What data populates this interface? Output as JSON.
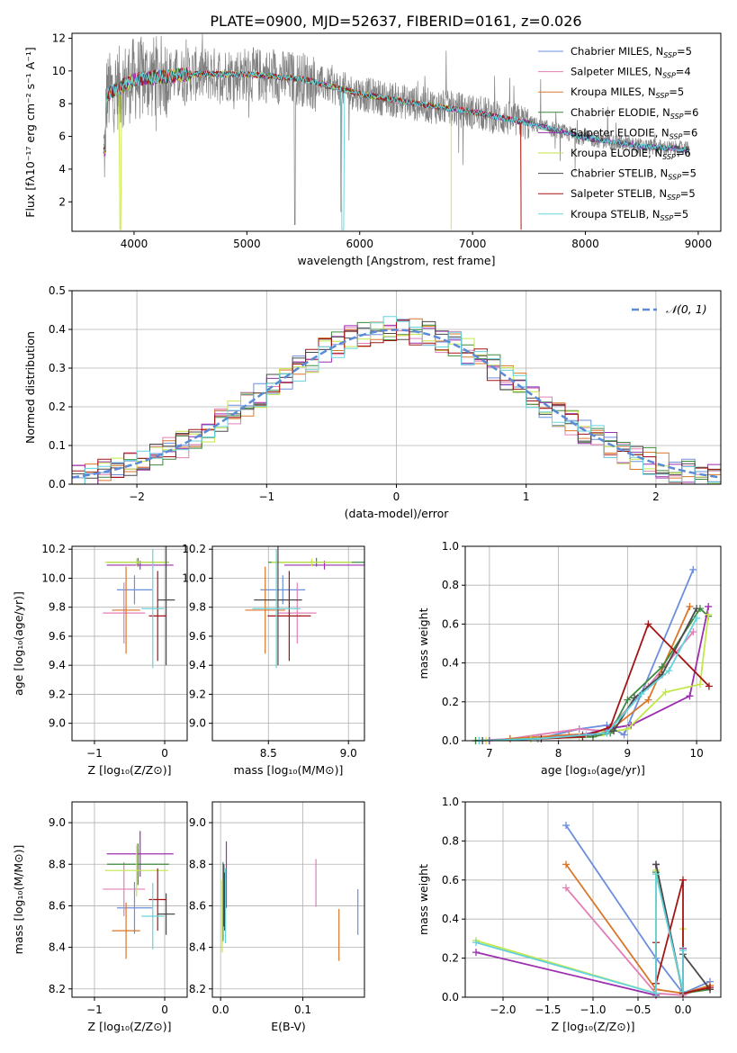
{
  "figure": {
    "title": "PLATE=0900, MJD=52637, FIBERID=0161, z=0.026"
  },
  "colors": [
    "#6a8fdc",
    "#e27fb6",
    "#d9772a",
    "#3d8a3d",
    "#9b2fae",
    "#c5e64a",
    "#4a4a4a",
    "#a31515",
    "#63d3dc"
  ],
  "chart_data": [
    {
      "id": "spectrum",
      "type": "line",
      "xlabel": "wavelength [Angstrom, rest frame]",
      "ylabel": "Flux [fλ10⁻¹⁷ erg cm⁻² s⁻¹ A⁻¹]",
      "xlim": [
        3450,
        9200
      ],
      "ylim": [
        0.2,
        12.3
      ],
      "xticks": [
        "4000",
        "5000",
        "6000",
        "7000",
        "8000",
        "9000"
      ],
      "yticks": [
        "2",
        "4",
        "6",
        "8",
        "10",
        "12"
      ],
      "legend_position": "upper-right",
      "legend": [
        {
          "base": "Chabrier MILES, N",
          "sub": "SSP",
          "tail": "=5"
        },
        {
          "base": "Salpeter MILES, N",
          "sub": "SSP",
          "tail": "=4"
        },
        {
          "base": "Kroupa MILES, N",
          "sub": "SSP",
          "tail": "=5"
        },
        {
          "base": "Chabrier ELODIE, N",
          "sub": "SSP",
          "tail": "=6"
        },
        {
          "base": "Salpeter ELODIE, N",
          "sub": "SSP",
          "tail": "=6"
        },
        {
          "base": "Kroupa ELODIE, N",
          "sub": "SSP",
          "tail": "=6"
        },
        {
          "base": "Chabrier STELIB, N",
          "sub": "SSP",
          "tail": "=5"
        },
        {
          "base": "Salpeter STELIB, N",
          "sub": "SSP",
          "tail": "=5"
        },
        {
          "base": "Kroupa STELIB, N",
          "sub": "SSP",
          "tail": "=5"
        }
      ],
      "data_continuum": {
        "x": [
          3750,
          4000,
          4500,
          5000,
          5500,
          6000,
          6500,
          7000,
          7500,
          8000,
          8500,
          8900
        ],
        "y": [
          8.5,
          9.5,
          9.8,
          9.8,
          9.5,
          8.6,
          8.0,
          7.5,
          6.8,
          5.9,
          5.4,
          5.2
        ]
      }
    },
    {
      "id": "residuals",
      "type": "area",
      "xlabel": "(data-model)/error",
      "ylabel": "Normed distribution",
      "xlim": [
        -2.5,
        2.5
      ],
      "ylim": [
        0,
        0.5
      ],
      "xticks": [
        "−2",
        "−1",
        "0",
        "1",
        "2"
      ],
      "yticks": [
        "0.0",
        "0.1",
        "0.2",
        "0.3",
        "0.4",
        "0.5"
      ],
      "legend_label": "𝒩(0, 1)",
      "gaussian": {
        "mu": 0,
        "sigma": 1
      }
    },
    {
      "id": "age_vs_Z",
      "type": "scatter",
      "xlabel": "Z [log₁₀(Z/Z⊙)]",
      "ylabel": "age  [log₁₀(age/yr)]",
      "xlim": [
        -1.32,
        0.32
      ],
      "ylim": [
        8.88,
        10.22
      ],
      "xticks": [
        "−1",
        "0"
      ],
      "yticks": [
        "9.0",
        "9.2",
        "9.4",
        "9.6",
        "9.8",
        "10.0",
        "10.2"
      ],
      "points": [
        {
          "x": -0.43,
          "xe": 0.5,
          "y": 9.92,
          "ye": 0.2
        },
        {
          "x": -0.58,
          "xe": 0.6,
          "y": 9.76,
          "ye": 0.42
        },
        {
          "x": -0.55,
          "xe": 0.4,
          "y": 9.78,
          "ye": 0.6
        },
        {
          "x": -0.38,
          "xe": 0.88,
          "y": 10.11,
          "ye": 0.06
        },
        {
          "x": -0.35,
          "xe": 0.95,
          "y": 10.09,
          "ye": 0.06
        },
        {
          "x": -0.4,
          "xe": 0.9,
          "y": 10.11,
          "ye": 0.05
        },
        {
          "x": 0.02,
          "xe": 0.25,
          "y": 9.85,
          "ye": 0.9
        },
        {
          "x": -0.1,
          "xe": 0.25,
          "y": 9.74,
          "ye": 0.62
        },
        {
          "x": -0.17,
          "xe": 0.32,
          "y": 9.79,
          "ye": 0.82
        }
      ]
    },
    {
      "id": "age_vs_mass",
      "type": "scatter",
      "xlabel": "mass [log₁₀(M/M⊙)]",
      "ylabel": "",
      "xlim": [
        8.15,
        9.1
      ],
      "ylim": [
        8.88,
        10.22
      ],
      "xticks": [
        "8.5",
        "9.0"
      ],
      "yticks": [
        "9.0",
        "9.2",
        "9.4",
        "9.6",
        "9.8",
        "10.0",
        "10.2"
      ],
      "points": [
        {
          "x": 8.59,
          "xe": 0.28,
          "y": 9.92,
          "ye": 0.2
        },
        {
          "x": 8.68,
          "xe": 0.24,
          "y": 9.76,
          "ye": 0.42
        },
        {
          "x": 8.48,
          "xe": 0.25,
          "y": 9.78,
          "ye": 0.6
        },
        {
          "x": 8.8,
          "xe": 0.6,
          "y": 10.11,
          "ye": 0.06
        },
        {
          "x": 8.85,
          "xe": 0.5,
          "y": 10.09,
          "ye": 0.06
        },
        {
          "x": 8.77,
          "xe": 0.5,
          "y": 10.11,
          "ye": 0.05
        },
        {
          "x": 8.56,
          "xe": 0.3,
          "y": 9.85,
          "ye": 0.9
        },
        {
          "x": 8.63,
          "xe": 0.27,
          "y": 9.74,
          "ye": 0.62
        },
        {
          "x": 8.55,
          "xe": 0.3,
          "y": 9.79,
          "ye": 0.82
        }
      ]
    },
    {
      "id": "mass_weight_vs_age",
      "type": "line",
      "xlabel": "age  [log₁₀(age/yr)]",
      "ylabel": "mass weight",
      "xlim": [
        6.65,
        10.35
      ],
      "ylim": [
        0,
        1
      ],
      "xticks": [
        "7",
        "8",
        "9",
        "10"
      ],
      "yticks": [
        "0.0",
        "0.2",
        "0.4",
        "0.6",
        "0.8",
        "1.0"
      ],
      "series": [
        {
          "x": [
            7.7,
            8.3,
            8.7,
            8.95,
            9.95
          ],
          "y": [
            0.01,
            0.06,
            0.08,
            0.03,
            0.88
          ]
        },
        {
          "x": [
            6.8,
            7.3,
            8.3,
            8.7,
            9.3,
            9.95
          ],
          "y": [
            0.0,
            0.01,
            0.06,
            0.05,
            0.28,
            0.56
          ]
        },
        {
          "x": [
            7.3,
            8.15,
            8.7,
            9.3,
            9.9
          ],
          "y": [
            0.01,
            0.03,
            0.04,
            0.21,
            0.69
          ]
        },
        {
          "x": [
            6.8,
            7.6,
            8.5,
            8.75,
            9.0,
            9.5,
            10.05,
            10.17
          ],
          "y": [
            0.0,
            0.01,
            0.02,
            0.04,
            0.21,
            0.38,
            0.68,
            0.64
          ]
        },
        {
          "x": [
            7.0,
            7.7,
            8.35,
            8.7,
            9.05,
            9.9,
            10.17
          ],
          "y": [
            0.0,
            0.01,
            0.03,
            0.06,
            0.08,
            0.23,
            0.69
          ]
        },
        {
          "x": [
            6.95,
            7.6,
            8.3,
            8.65,
            9.0,
            9.55,
            10.05,
            10.17
          ],
          "y": [
            0.0,
            0.01,
            0.02,
            0.04,
            0.06,
            0.25,
            0.29,
            0.65
          ]
        },
        {
          "x": [
            6.9,
            7.7,
            8.5,
            8.8,
            9.1,
            9.5,
            10.0
          ],
          "y": [
            0.0,
            0.01,
            0.03,
            0.05,
            0.22,
            0.34,
            0.68
          ]
        },
        {
          "x": [
            7.75,
            8.35,
            8.75,
            9.3,
            10.18
          ],
          "y": [
            0.01,
            0.02,
            0.07,
            0.6,
            0.28
          ]
        },
        {
          "x": [
            6.85,
            7.7,
            8.4,
            8.7,
            9.2,
            9.6,
            10.0
          ],
          "y": [
            0.0,
            0.01,
            0.03,
            0.04,
            0.24,
            0.36,
            0.63
          ]
        }
      ]
    },
    {
      "id": "mass_vs_Z",
      "type": "scatter",
      "xlabel": "Z [log₁₀(Z/Z⊙)]",
      "ylabel": "mass [log₁₀(M/M⊙)]",
      "xlim": [
        -1.32,
        0.32
      ],
      "ylim": [
        8.16,
        9.1
      ],
      "xticks": [
        "−1",
        "0"
      ],
      "yticks": [
        "8.2",
        "8.4",
        "8.6",
        "8.8",
        "9.0"
      ],
      "points": [
        {
          "x": -0.43,
          "xe": 0.5,
          "y": 8.59,
          "ye": 0.25
        },
        {
          "x": -0.58,
          "xe": 0.6,
          "y": 8.68,
          "ye": 0.26
        },
        {
          "x": -0.55,
          "xe": 0.4,
          "y": 8.48,
          "ye": 0.27
        },
        {
          "x": -0.38,
          "xe": 0.88,
          "y": 8.8,
          "ye": 0.2
        },
        {
          "x": -0.35,
          "xe": 0.95,
          "y": 8.85,
          "ye": 0.22
        },
        {
          "x": -0.4,
          "xe": 0.9,
          "y": 8.77,
          "ye": 0.25
        },
        {
          "x": 0.02,
          "xe": 0.25,
          "y": 8.56,
          "ye": 0.2
        },
        {
          "x": -0.1,
          "xe": 0.25,
          "y": 8.63,
          "ye": 0.3
        },
        {
          "x": -0.17,
          "xe": 0.32,
          "y": 8.55,
          "ye": 0.32
        }
      ]
    },
    {
      "id": "mass_vs_ebv",
      "type": "scatter",
      "xlabel": "E(B-V)",
      "ylabel": "",
      "xlim": [
        -0.01,
        0.175
      ],
      "ylim": [
        8.16,
        9.1
      ],
      "xticks": [
        "0.0",
        "0.1"
      ],
      "yticks": [
        "8.2",
        "8.4",
        "8.6",
        "8.8",
        "9.0"
      ],
      "points": [
        {
          "x": 0.167,
          "xe": 0,
          "y": 8.57,
          "ye": 0.22
        },
        {
          "x": 0.116,
          "xe": 0,
          "y": 8.71,
          "ye": 0.23
        },
        {
          "x": 0.144,
          "xe": 0,
          "y": 8.46,
          "ye": 0.25
        },
        {
          "x": 0.003,
          "xe": 0,
          "y": 8.62,
          "ye": 0.38
        },
        {
          "x": 0.007,
          "xe": 0,
          "y": 8.75,
          "ye": 0.32
        },
        {
          "x": 0.002,
          "xe": 0,
          "y": 8.55,
          "ye": 0.35
        },
        {
          "x": 0.004,
          "xe": 0,
          "y": 8.65,
          "ye": 0.3
        },
        {
          "x": 0.005,
          "xe": 0,
          "y": 8.62,
          "ye": 0.28
        },
        {
          "x": 0.006,
          "xe": 0,
          "y": 8.6,
          "ye": 0.36
        }
      ]
    },
    {
      "id": "mass_weight_vs_Z",
      "type": "line",
      "xlabel": "Z [log₁₀(Z/Z⊙)]",
      "ylabel": "mass weight",
      "xlim": [
        -2.42,
        0.42
      ],
      "ylim": [
        0,
        1
      ],
      "xticks": [
        "−2.0",
        "−1.5",
        "−1.0",
        "−0.5",
        "0.0"
      ],
      "yticks": [
        "0.0",
        "0.2",
        "0.4",
        "0.6",
        "0.8",
        "1.0"
      ],
      "series": [
        {
          "x": [
            -1.3,
            -0.3,
            0.0,
            0.3
          ],
          "y": [
            0.88,
            0.2,
            0.02,
            0.08
          ]
        },
        {
          "x": [
            -1.3,
            -0.3,
            0.0,
            0.3
          ],
          "y": [
            0.56,
            0.02,
            0.01,
            0.06
          ]
        },
        {
          "x": [
            -1.3,
            -0.3,
            0.0,
            0.3
          ],
          "y": [
            0.68,
            0.04,
            0.02,
            0.06
          ]
        },
        {
          "x": [
            -0.3,
            0.0,
            0.3
          ],
          "y": [
            0.64,
            0.02,
            0.04
          ]
        },
        {
          "x": [
            -2.3,
            -0.3,
            -0.3,
            0.0,
            0.0
          ],
          "y": [
            0.23,
            0.01,
            0.68,
            0.02,
            0.25
          ]
        },
        {
          "x": [
            -2.3,
            -0.3,
            -0.3,
            0.0,
            0.0
          ],
          "y": [
            0.29,
            0.02,
            0.65,
            0.02,
            0.35
          ]
        },
        {
          "x": [
            -0.3,
            0.0,
            0.0,
            0.3
          ],
          "y": [
            0.68,
            0.02,
            0.22,
            0.04
          ]
        },
        {
          "x": [
            -0.3,
            -0.3,
            0.0,
            0.0,
            0.3
          ],
          "y": [
            0.28,
            0.07,
            0.6,
            0.02,
            0.05
          ]
        },
        {
          "x": [
            -2.3,
            -0.3,
            -0.3,
            0.0,
            0.0
          ],
          "y": [
            0.28,
            0.02,
            0.63,
            0.03,
            0.24
          ]
        }
      ]
    }
  ]
}
